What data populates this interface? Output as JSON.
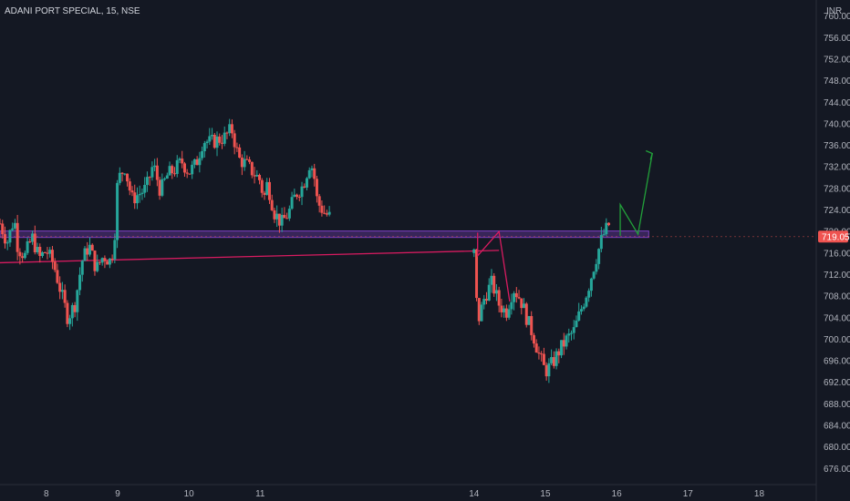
{
  "header": {
    "symbol_line": "ADANI PORT SPECIAL, 15, NSE"
  },
  "currency": "INR",
  "last_price_label": "719.05",
  "colors": {
    "background": "#141823",
    "up": "#26a69a",
    "down": "#ef5350",
    "support_line": "#7b3fbf",
    "trend_line": "#d81b60",
    "projection_green": "#22a03a",
    "projection_red": "#d81b60",
    "price_tag": "#ef5350",
    "text": "#b2b5be"
  },
  "chart_data": {
    "type": "candlestick",
    "title": "ADANI PORT SPECIAL, 15, NSE",
    "ylim": [
      673,
      763
    ],
    "y_ticks": [
      676,
      680,
      684,
      688,
      692,
      696,
      700,
      704,
      708,
      712,
      716,
      720,
      724,
      728,
      732,
      736,
      740,
      744,
      748,
      752,
      756,
      760
    ],
    "y_tick_labels": [
      "676.00",
      "680.00",
      "684.00",
      "688.00",
      "692.00",
      "696.00",
      "700.00",
      "704.00",
      "708.00",
      "712.00",
      "716.00",
      "720.00",
      "724.00",
      "728.00",
      "732.00",
      "736.00",
      "740.00",
      "744.00",
      "748.00",
      "752.00",
      "756.00",
      "760.00"
    ],
    "xlim": [
      7.35,
      18.8
    ],
    "x_ticks": [
      8,
      9,
      10,
      11,
      14,
      15,
      16,
      17,
      18
    ],
    "x_tick_labels": [
      "8",
      "9",
      "10",
      "11",
      "14",
      "15",
      "16",
      "17",
      "18"
    ],
    "last_price": 719.05,
    "grid": false,
    "path": [
      [
        7.35,
        721.5
      ],
      [
        7.45,
        718.0
      ],
      [
        7.55,
        722.5
      ],
      [
        7.6,
        717.0
      ],
      [
        7.7,
        715.5
      ],
      [
        7.8,
        719.0
      ],
      [
        7.9,
        715.0
      ],
      [
        8.0,
        716.5
      ],
      [
        8.1,
        714.0
      ],
      [
        8.2,
        709.0
      ],
      [
        8.3,
        704.0
      ],
      [
        8.4,
        706.5
      ],
      [
        8.5,
        714.5
      ],
      [
        8.6,
        717.5
      ],
      [
        8.7,
        713.0
      ],
      [
        8.8,
        715.5
      ],
      [
        8.9,
        714.5
      ],
      [
        8.95,
        717.5
      ],
      [
        9.0,
        729.5
      ],
      [
        9.1,
        732.0
      ],
      [
        9.2,
        726.0
      ],
      [
        9.3,
        727.0
      ],
      [
        9.4,
        728.0
      ],
      [
        9.5,
        732.5
      ],
      [
        9.6,
        727.5
      ],
      [
        9.7,
        730.5
      ],
      [
        9.8,
        731.5
      ],
      [
        9.9,
        733.0
      ],
      [
        10.0,
        731.0
      ],
      [
        10.1,
        732.5
      ],
      [
        10.2,
        737.0
      ],
      [
        10.3,
        736.5
      ],
      [
        10.4,
        737.0
      ],
      [
        10.5,
        737.5
      ],
      [
        10.6,
        739.0
      ],
      [
        10.7,
        733.5
      ],
      [
        10.8,
        732.5
      ],
      [
        10.9,
        731.0
      ],
      [
        11.0,
        729.5
      ],
      [
        11.05,
        726.0
      ],
      [
        11.1,
        729.0
      ],
      [
        11.2,
        723.5
      ],
      [
        11.3,
        721.5
      ],
      [
        11.4,
        723.5
      ],
      [
        11.5,
        727.0
      ],
      [
        11.6,
        728.5
      ],
      [
        11.7,
        733.0
      ],
      [
        11.75,
        731.0
      ],
      [
        11.8,
        725.5
      ],
      [
        11.9,
        723.5
      ],
      [
        12.0,
        722.5
      ],
      [
        14.0,
        716.0
      ],
      [
        14.05,
        703.0
      ],
      [
        14.15,
        708.0
      ],
      [
        14.25,
        710.5
      ],
      [
        14.35,
        706.5
      ],
      [
        14.45,
        705.0
      ],
      [
        14.55,
        709.5
      ],
      [
        14.65,
        707.5
      ],
      [
        14.75,
        703.5
      ],
      [
        14.85,
        700.0
      ],
      [
        14.9,
        697.5
      ],
      [
        15.0,
        694.0
      ],
      [
        15.1,
        695.5
      ],
      [
        15.2,
        698.0
      ],
      [
        15.3,
        700.0
      ],
      [
        15.4,
        701.5
      ],
      [
        15.5,
        705.5
      ],
      [
        15.6,
        709.5
      ],
      [
        15.7,
        714.5
      ],
      [
        15.8,
        719.0
      ],
      [
        15.9,
        721.5
      ]
    ],
    "lines": [
      {
        "name": "support",
        "from": [
          7.35,
          719.5
        ],
        "to": [
          16.45,
          719.5
        ],
        "band": 1.2
      },
      {
        "name": "trendline",
        "from": [
          7.35,
          714.2
        ],
        "to": [
          14.35,
          716.5
        ]
      }
    ],
    "projection_up": [
      [
        16.05,
        719.2
      ],
      [
        16.05,
        725.0
      ],
      [
        16.3,
        719.5
      ],
      [
        16.5,
        734.5
      ]
    ],
    "projection_down": [
      [
        14.05,
        719.8
      ],
      [
        14.05,
        715.5
      ],
      [
        14.35,
        720.0
      ],
      [
        14.5,
        707.0
      ]
    ]
  }
}
